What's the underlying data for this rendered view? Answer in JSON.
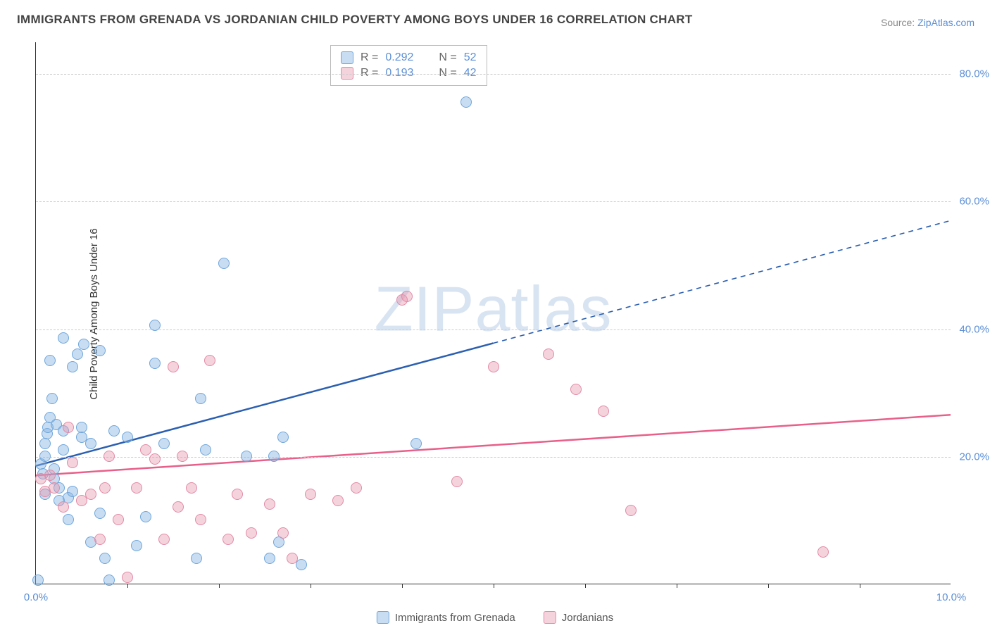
{
  "title": "IMMIGRANTS FROM GRENADA VS JORDANIAN CHILD POVERTY AMONG BOYS UNDER 16 CORRELATION CHART",
  "source_prefix": "Source: ",
  "source_link": "ZipAtlas.com",
  "y_axis_label": "Child Poverty Among Boys Under 16",
  "watermark": "ZIPatlas",
  "chart": {
    "type": "scatter",
    "xlim": [
      0,
      10
    ],
    "ylim": [
      0,
      85
    ],
    "x_ticks": [
      0,
      5,
      10
    ],
    "x_tick_labels": [
      "0.0%",
      "",
      "10.0%"
    ],
    "x_minor_ticks": [
      1,
      2,
      3,
      4,
      5,
      6,
      7,
      8,
      9
    ],
    "y_ticks": [
      20,
      40,
      60,
      80
    ],
    "y_tick_labels": [
      "20.0%",
      "40.0%",
      "60.0%",
      "80.0%"
    ],
    "background_color": "#ffffff",
    "grid_color": "#cccccc",
    "marker_size": 16,
    "series": [
      {
        "key": "grenada",
        "label": "Immigrants from Grenada",
        "color_fill": "rgba(135,179,226,0.45)",
        "color_stroke": "#6ea6db",
        "r": "0.292",
        "n": "52",
        "trend": {
          "color": "#2b5fb0",
          "y_at_x0": 18.5,
          "y_at_x10": 57,
          "solid_until_x": 5.0
        },
        "points": [
          [
            0.02,
            0.5
          ],
          [
            0.05,
            18.8
          ],
          [
            0.08,
            17.2
          ],
          [
            0.1,
            14
          ],
          [
            0.1,
            20
          ],
          [
            0.1,
            22
          ],
          [
            0.12,
            23.5
          ],
          [
            0.13,
            24.5
          ],
          [
            0.15,
            35
          ],
          [
            0.15,
            26
          ],
          [
            0.18,
            29
          ],
          [
            0.2,
            16.5
          ],
          [
            0.2,
            18
          ],
          [
            0.22,
            25
          ],
          [
            0.25,
            15
          ],
          [
            0.25,
            13
          ],
          [
            0.3,
            38.5
          ],
          [
            0.3,
            21
          ],
          [
            0.3,
            24
          ],
          [
            0.35,
            10
          ],
          [
            0.35,
            13.5
          ],
          [
            0.4,
            34
          ],
          [
            0.4,
            14.5
          ],
          [
            0.45,
            36
          ],
          [
            0.5,
            23
          ],
          [
            0.5,
            24.5
          ],
          [
            0.52,
            37.5
          ],
          [
            0.6,
            6.5
          ],
          [
            0.6,
            22
          ],
          [
            0.7,
            11
          ],
          [
            0.7,
            36.5
          ],
          [
            0.75,
            4
          ],
          [
            0.8,
            0.5
          ],
          [
            0.85,
            24
          ],
          [
            1.0,
            23
          ],
          [
            1.1,
            6
          ],
          [
            1.2,
            10.5
          ],
          [
            1.3,
            40.5
          ],
          [
            1.3,
            34.5
          ],
          [
            1.4,
            22
          ],
          [
            1.75,
            4
          ],
          [
            1.8,
            29
          ],
          [
            1.85,
            21
          ],
          [
            2.05,
            50.2
          ],
          [
            2.3,
            20
          ],
          [
            2.55,
            4
          ],
          [
            2.6,
            20
          ],
          [
            2.65,
            6.5
          ],
          [
            2.7,
            23
          ],
          [
            2.9,
            3
          ],
          [
            4.15,
            22
          ],
          [
            4.7,
            75.5
          ]
        ]
      },
      {
        "key": "jordanians",
        "label": "Jordanians",
        "color_fill": "rgba(232,150,175,0.42)",
        "color_stroke": "#e28aa6",
        "r": "0.193",
        "n": "42",
        "trend": {
          "color": "#e86089",
          "y_at_x0": 17,
          "y_at_x10": 26.5,
          "solid_until_x": 10
        },
        "points": [
          [
            0.05,
            16.5
          ],
          [
            0.1,
            14.5
          ],
          [
            0.15,
            17
          ],
          [
            0.2,
            15
          ],
          [
            0.3,
            12
          ],
          [
            0.35,
            24.5
          ],
          [
            0.4,
            19
          ],
          [
            0.5,
            13
          ],
          [
            0.6,
            14
          ],
          [
            0.7,
            7
          ],
          [
            0.75,
            15
          ],
          [
            0.8,
            20
          ],
          [
            0.9,
            10
          ],
          [
            1.0,
            1
          ],
          [
            1.1,
            15
          ],
          [
            1.2,
            21
          ],
          [
            1.3,
            19.5
          ],
          [
            1.4,
            7
          ],
          [
            1.5,
            34
          ],
          [
            1.55,
            12
          ],
          [
            1.6,
            20
          ],
          [
            1.7,
            15
          ],
          [
            1.8,
            10
          ],
          [
            1.9,
            35
          ],
          [
            2.1,
            7
          ],
          [
            2.2,
            14
          ],
          [
            2.35,
            8
          ],
          [
            2.55,
            12.5
          ],
          [
            2.7,
            8
          ],
          [
            2.8,
            4
          ],
          [
            3.0,
            14
          ],
          [
            3.3,
            13
          ],
          [
            3.5,
            15
          ],
          [
            4.0,
            44.5
          ],
          [
            4.05,
            45
          ],
          [
            4.6,
            16
          ],
          [
            5.0,
            34
          ],
          [
            5.6,
            36
          ],
          [
            5.9,
            30.5
          ],
          [
            6.2,
            27
          ],
          [
            6.5,
            11.5
          ],
          [
            8.6,
            5
          ]
        ]
      }
    ]
  },
  "stats_labels": {
    "r": "R =",
    "n": "N ="
  }
}
